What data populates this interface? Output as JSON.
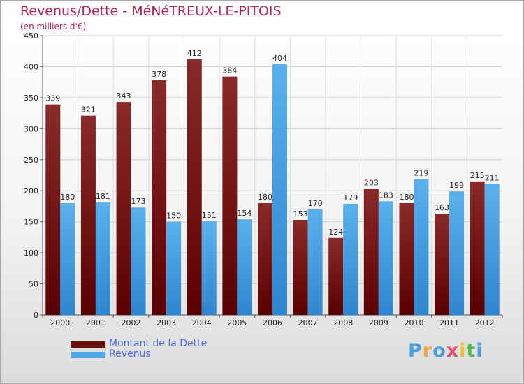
{
  "header": {
    "title": "Revenus/Dette - MéNéTREUX-LE-PITOIS",
    "subtitle": "(en milliers d'€)"
  },
  "chart_data": {
    "type": "bar",
    "title": "Revenus/Dette - MéNéTREUX-LE-PITOIS",
    "subtitle": "(en milliers d'€)",
    "xlabel": "",
    "ylabel": "",
    "categories": [
      "2000",
      "2001",
      "2002",
      "2003",
      "2004",
      "2005",
      "2006",
      "2007",
      "2008",
      "2009",
      "2010",
      "2011",
      "2012"
    ],
    "series": [
      {
        "name": "Montant de la Dette",
        "color": "#7b1a1a",
        "values": [
          339,
          321,
          343,
          378,
          412,
          384,
          180,
          153,
          124,
          203,
          180,
          163,
          215
        ]
      },
      {
        "name": "Revenus",
        "color": "#4ea6e6",
        "values": [
          180,
          181,
          173,
          150,
          151,
          154,
          404,
          170,
          179,
          183,
          219,
          199,
          211
        ]
      }
    ],
    "ylim": [
      0,
      450
    ],
    "yticks": [
      0,
      50,
      100,
      150,
      200,
      250,
      300,
      350,
      400,
      450
    ],
    "grid": true,
    "legend": "bottom-left"
  },
  "legend": {
    "items": [
      {
        "label": "Montant de la Dette",
        "color": "#6a0e0e"
      },
      {
        "label": "Revenus",
        "color": "#4ea6e6"
      }
    ]
  },
  "logo": {
    "letters": [
      "P",
      "r",
      "o",
      "x",
      "i",
      "t",
      "i"
    ],
    "colors": [
      "#4aa0de",
      "#f3a43a",
      "#4aa0de",
      "#e84d6b",
      "#f0c12b",
      "#57b84f",
      "#4aa0de"
    ]
  }
}
